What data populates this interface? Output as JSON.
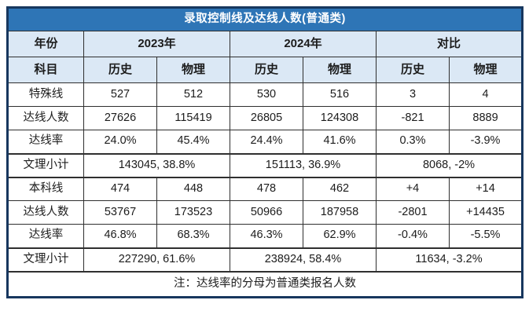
{
  "title": "录取控制线及达线人数(普通类)",
  "colors": {
    "title_bg": "#2e75b6",
    "title_text": "#ffffff",
    "header_bg": "#dbe8f5",
    "border_outer": "#17375e",
    "border_inner": "#2f2f2f",
    "text": "#1c1c1c",
    "page_bg": "#ffffff"
  },
  "header": {
    "year_label": "年份",
    "subject_label": "科目",
    "groups": [
      "2023年",
      "2024年",
      "对比"
    ],
    "subjects": [
      "历史",
      "物理",
      "历史",
      "物理",
      "历史",
      "物理"
    ]
  },
  "rows": [
    {
      "label": "特殊线",
      "values": [
        "527",
        "512",
        "530",
        "516",
        "3",
        "4"
      ]
    },
    {
      "label": "达线人数",
      "values": [
        "27626",
        "115419",
        "26805",
        "124308",
        "-821",
        "8889"
      ]
    },
    {
      "label": "达线率",
      "values": [
        "24.0%",
        "45.4%",
        "24.4%",
        "41.6%",
        "0.3%",
        "-3.9%"
      ]
    },
    {
      "label": "文理小计",
      "merged": true,
      "values": [
        "143045, 38.8%",
        "151113, 36.9%",
        "8068, -2%"
      ]
    },
    {
      "label": "本科线",
      "values": [
        "474",
        "448",
        "478",
        "462",
        "+4",
        "+14"
      ]
    },
    {
      "label": "达线人数",
      "values": [
        "53767",
        "173523",
        "50966",
        "187958",
        "-2801",
        "+14435"
      ]
    },
    {
      "label": "达线率",
      "values": [
        "46.8%",
        "68.3%",
        "46.3%",
        "62.9%",
        "-0.4%",
        "-5.5%"
      ]
    },
    {
      "label": "文理小计",
      "merged": true,
      "values": [
        "227290, 61.6%",
        "238924, 58.4%",
        "11634, -3.2%"
      ]
    }
  ],
  "note": "注：达线率的分母为普通类报名人数"
}
